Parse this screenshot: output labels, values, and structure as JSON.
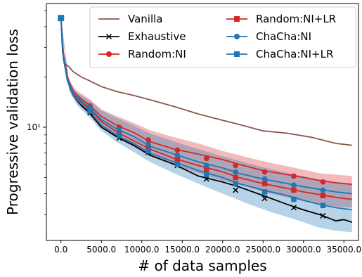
{
  "chart_data": {
    "type": "line",
    "xlabel": "# of data samples",
    "ylabel": "Progressive validation loss",
    "y_scale": "log",
    "xlim": [
      -1800,
      36800
    ],
    "ylim": [
      2.1,
      55
    ],
    "x_ticks": [
      0,
      5000,
      10000,
      15000,
      20000,
      25000,
      30000,
      35000
    ],
    "x_tick_labels": [
      "0.0",
      "5000.0",
      "10000.0",
      "15000.0",
      "20000.0",
      "25000.0",
      "30000.0",
      "35000.0"
    ],
    "y_ticks": [
      10
    ],
    "y_tick_labels": [
      "10¹"
    ],
    "grid": false,
    "legend_position": "top-right",
    "series": [
      {
        "name": "Vanilla",
        "color": "#8c564b",
        "marker": "none",
        "x": [
          0,
          200,
          500,
          1000,
          1500,
          2500,
          3500,
          5000,
          7000,
          9000,
          11000,
          14000,
          17000,
          20000,
          22000,
          25000,
          28000,
          31000,
          34000,
          35000,
          36000
        ],
        "y": [
          45,
          28,
          24,
          23,
          21.5,
          20,
          19,
          17.5,
          16.3,
          15.5,
          14.6,
          13.3,
          12,
          11,
          10.4,
          9.5,
          9.2,
          8.7,
          8.0,
          7.9,
          7.8
        ]
      },
      {
        "name": "Exhaustive",
        "color": "#000000",
        "marker": "x",
        "x": [
          0,
          300,
          800,
          1500,
          2500,
          3500,
          5000,
          7000,
          9000,
          11000,
          14000,
          17000,
          20000,
          22000,
          25000,
          28000,
          30000,
          32000,
          34000,
          35000,
          36000
        ],
        "y": [
          45,
          26,
          19,
          15.5,
          13.5,
          12.2,
          10,
          8.7,
          7.8,
          6.8,
          6.0,
          5.1,
          4.7,
          4.4,
          3.9,
          3.45,
          3.2,
          3.0,
          2.75,
          2.8,
          2.7
        ],
        "marker_x": [
          3600,
          7200,
          10800,
          14400,
          18000,
          21600,
          25200,
          28800,
          32400
        ],
        "marker_y": [
          12.2,
          8.6,
          7.1,
          5.9,
          4.9,
          4.2,
          3.75,
          3.3,
          2.95
        ]
      },
      {
        "name": "Random:NI",
        "color": "#d62728",
        "marker": "o",
        "x": [
          0,
          300,
          800,
          1500,
          2500,
          3500,
          5000,
          7000,
          9000,
          11000,
          14000,
          17000,
          20000,
          22000,
          25000,
          28000,
          30000,
          32000,
          34000,
          35000,
          36000
        ],
        "y": [
          45,
          28,
          20,
          16.5,
          14.8,
          13.6,
          11.6,
          10.2,
          9.3,
          8.2,
          7.4,
          6.9,
          6.4,
          6.0,
          5.5,
          5.2,
          5.0,
          4.8,
          4.65,
          4.6,
          4.55
        ],
        "marker_x": [
          3600,
          7200,
          10800,
          14400,
          18000,
          21600,
          25200,
          28800,
          32400
        ],
        "marker_y": [
          13.4,
          10.0,
          8.4,
          7.3,
          6.5,
          5.9,
          5.4,
          5.1,
          4.7
        ]
      },
      {
        "name": "Random:NI+LR",
        "color": "#d62728",
        "marker": "s",
        "x": [
          0,
          300,
          800,
          1500,
          2500,
          3500,
          5000,
          7000,
          9000,
          11000,
          14000,
          17000,
          20000,
          22000,
          25000,
          28000,
          30000,
          32000,
          34000,
          35000,
          36000
        ],
        "y": [
          45,
          27,
          19.5,
          15.8,
          14.2,
          12.9,
          10.8,
          9.3,
          8.3,
          7.4,
          6.5,
          5.9,
          5.4,
          5.0,
          4.6,
          4.3,
          4.1,
          3.95,
          3.8,
          3.75,
          3.7
        ],
        "marker_x": [
          3600,
          7200,
          10800,
          14400,
          18000,
          21600,
          25200,
          28800,
          32400
        ],
        "marker_y": [
          12.8,
          9.2,
          7.6,
          6.4,
          5.6,
          5.0,
          4.6,
          4.2,
          3.9
        ]
      },
      {
        "name": "ChaCha:NI",
        "color": "#1f77b4",
        "marker": "o",
        "x": [
          0,
          300,
          800,
          1500,
          2500,
          3500,
          5000,
          7000,
          9000,
          11000,
          14000,
          17000,
          20000,
          22000,
          25000,
          28000,
          30000,
          32000,
          34000,
          35000,
          36000
        ],
        "y": [
          45,
          27,
          19.5,
          16,
          14.4,
          13.2,
          11.1,
          9.7,
          8.8,
          7.7,
          6.9,
          6.2,
          5.7,
          5.3,
          4.9,
          4.6,
          4.4,
          4.25,
          4.1,
          4.05,
          4.0
        ],
        "marker_x": [
          3600,
          7200,
          10800,
          14400,
          18000,
          21600,
          25200,
          28800,
          32400
        ],
        "marker_y": [
          13.1,
          9.6,
          7.9,
          6.8,
          5.9,
          5.4,
          4.9,
          4.5,
          4.2
        ]
      },
      {
        "name": "ChaCha:NI+LR",
        "color": "#1f77b4",
        "marker": "s",
        "x": [
          0,
          300,
          800,
          1500,
          2500,
          3500,
          5000,
          7000,
          9000,
          11000,
          14000,
          17000,
          20000,
          22000,
          25000,
          28000,
          30000,
          32000,
          34000,
          35000,
          36000
        ],
        "y": [
          45,
          26.5,
          19,
          15.5,
          13.8,
          12.5,
          10.3,
          8.9,
          8.0,
          7.0,
          6.2,
          5.5,
          5.0,
          4.6,
          4.2,
          3.9,
          3.65,
          3.45,
          3.3,
          3.25,
          3.2
        ],
        "marker_x": [
          3600,
          7200,
          10800,
          14400,
          18000,
          21600,
          25200,
          28800,
          32400
        ],
        "marker_y": [
          12.5,
          8.9,
          7.2,
          6.0,
          5.2,
          4.6,
          4.1,
          3.7,
          3.4
        ]
      }
    ],
    "bands": [
      {
        "color": "#d62728",
        "opacity": 0.32,
        "x": [
          0,
          1000,
          2000,
          3500,
          5000,
          7000,
          9000,
          11000,
          14000,
          17000,
          20000,
          23000,
          26000,
          29000,
          32000,
          34000,
          36000
        ],
        "upper": [
          45,
          19,
          16.5,
          14.8,
          12.8,
          11.6,
          10.6,
          9.6,
          8.7,
          8.0,
          7.2,
          6.6,
          6.1,
          5.7,
          5.3,
          5.2,
          5.1
        ],
        "lower": [
          45,
          17,
          14,
          12.0,
          10.0,
          8.6,
          7.6,
          6.7,
          5.9,
          5.3,
          4.8,
          4.4,
          4.0,
          3.7,
          3.45,
          3.35,
          3.3
        ]
      },
      {
        "color": "#1f77b4",
        "opacity": 0.32,
        "x": [
          0,
          1000,
          2000,
          3500,
          5000,
          7000,
          9000,
          11000,
          14000,
          17000,
          20000,
          23000,
          26000,
          29000,
          32000,
          34000,
          36000
        ],
        "upper": [
          45,
          18.5,
          16,
          14.5,
          12.6,
          11.3,
          10.2,
          9.2,
          8.2,
          7.4,
          6.7,
          6.1,
          5.6,
          5.2,
          4.85,
          4.7,
          4.6
        ],
        "lower": [
          45,
          16.5,
          13.5,
          11.5,
          9.5,
          8.1,
          7.1,
          6.2,
          5.3,
          4.6,
          4.0,
          3.5,
          3.1,
          2.8,
          2.5,
          2.4,
          2.35
        ]
      }
    ]
  }
}
